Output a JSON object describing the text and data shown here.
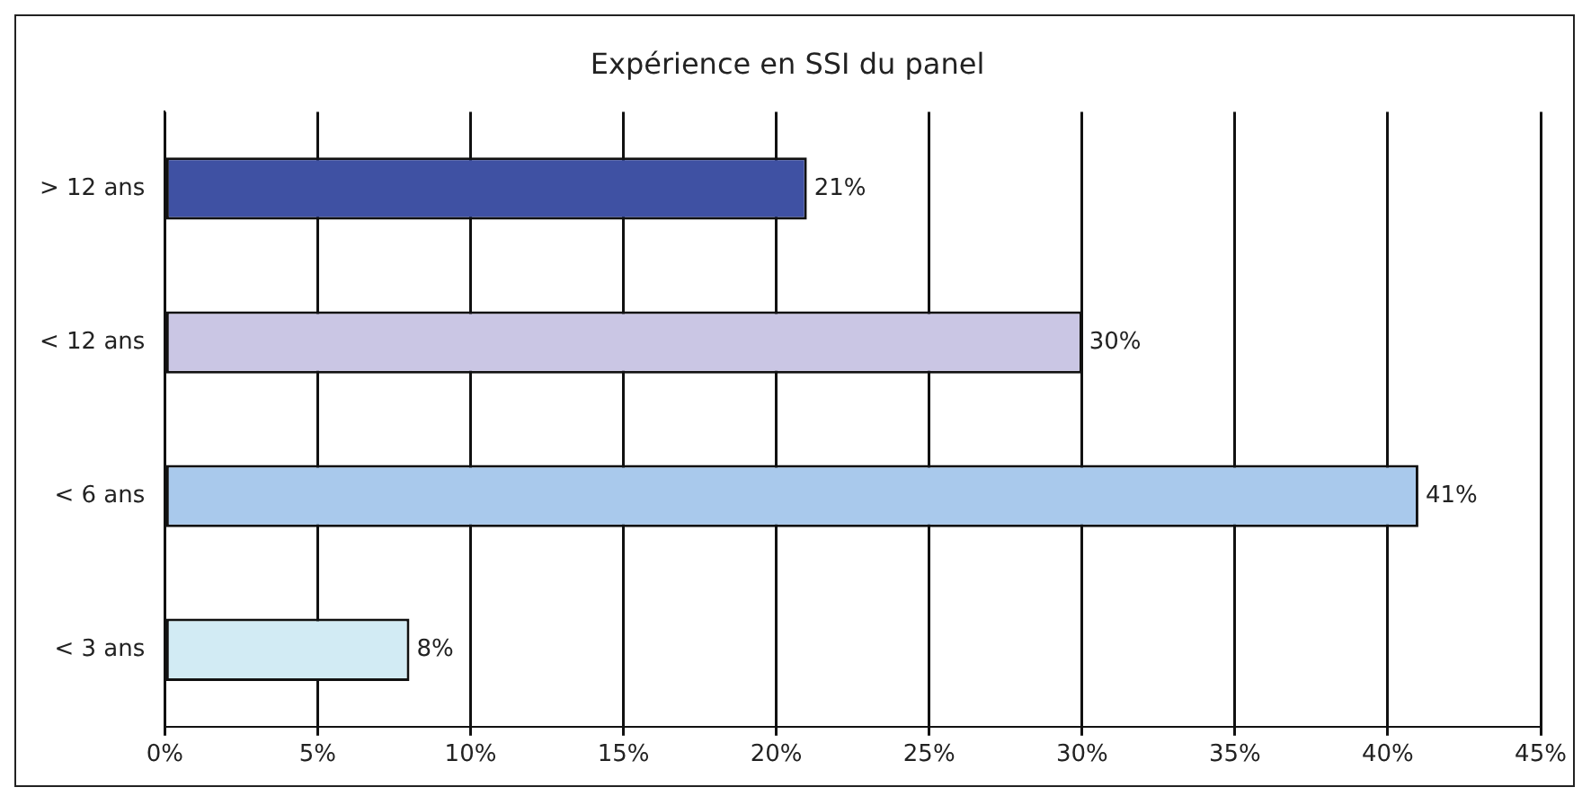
{
  "chart_data": {
    "type": "bar",
    "orientation": "horizontal",
    "title": "Expérience en SSI du panel",
    "categories": [
      "> 12 ans",
      "< 12 ans",
      "< 6 ans",
      "< 3 ans"
    ],
    "values": [
      21,
      30,
      41,
      8
    ],
    "colors": [
      "#3f51a3",
      "#cac6e4",
      "#a9c9ec",
      "#d2ebf4"
    ],
    "value_labels": [
      "21%",
      "30%",
      "41%",
      "8%"
    ],
    "xlim": [
      0,
      45
    ],
    "xticks": [
      {
        "value": 0,
        "label": "0%"
      },
      {
        "value": 5,
        "label": "5%"
      },
      {
        "value": 10,
        "label": "10%"
      },
      {
        "value": 15,
        "label": "15%"
      },
      {
        "value": 20,
        "label": "20%"
      },
      {
        "value": 25,
        "label": "25%"
      },
      {
        "value": 30,
        "label": "30%"
      },
      {
        "value": 35,
        "label": "35%"
      },
      {
        "value": 40,
        "label": "40%"
      },
      {
        "value": 45,
        "label": "45%"
      }
    ],
    "grid": "x"
  }
}
